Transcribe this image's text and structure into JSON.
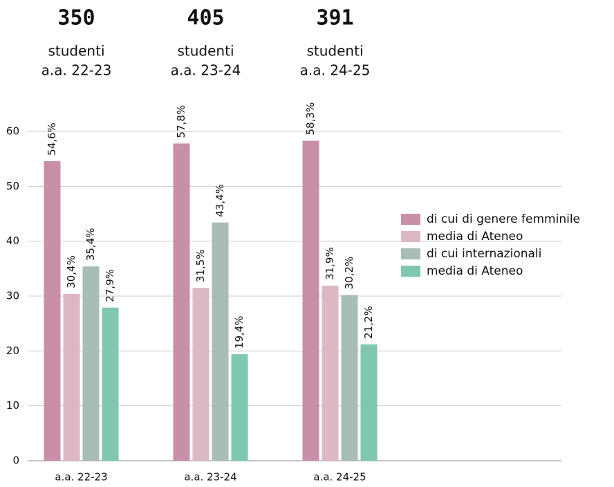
{
  "chart_data": {
    "type": "bar",
    "group_headers": [
      {
        "count": 350,
        "lines": [
          "studenti",
          "a.a. 22-23"
        ]
      },
      {
        "count": 405,
        "lines": [
          "studenti",
          "a.a. 23-24"
        ]
      },
      {
        "count": 391,
        "lines": [
          "studenti",
          "a.a. 24-25"
        ]
      }
    ],
    "categories": [
      "a.a. 22-23",
      "a.a. 23-24",
      "a.a. 24-25"
    ],
    "series": [
      {
        "name": "di cui di genere femminile",
        "color": "#c98fa8",
        "values": [
          54.6,
          57.8,
          58.3
        ],
        "value_labels": [
          "54,6%",
          "57,8%",
          "58,3%"
        ]
      },
      {
        "name": "media di Ateneo",
        "color": "#dcb8c4",
        "values": [
          30.4,
          31.5,
          31.9
        ],
        "value_labels": [
          "30,4%",
          "31,5%",
          "31,9%"
        ]
      },
      {
        "name": "di cui internazionali",
        "color": "#a8bdb4",
        "values": [
          35.4,
          43.4,
          30.2
        ],
        "value_labels": [
          "35,4%",
          "43,4%",
          "30,2%"
        ]
      },
      {
        "name": "media di Ateneo",
        "color": "#7fc8ae",
        "values": [
          27.9,
          19.4,
          21.2
        ],
        "value_labels": [
          "27,9%",
          "19,4%",
          "21,2%"
        ]
      }
    ],
    "ylim": [
      0,
      60
    ],
    "yticks": [
      0,
      10,
      20,
      30,
      40,
      50,
      60
    ],
    "grid": true,
    "legend": "right"
  }
}
